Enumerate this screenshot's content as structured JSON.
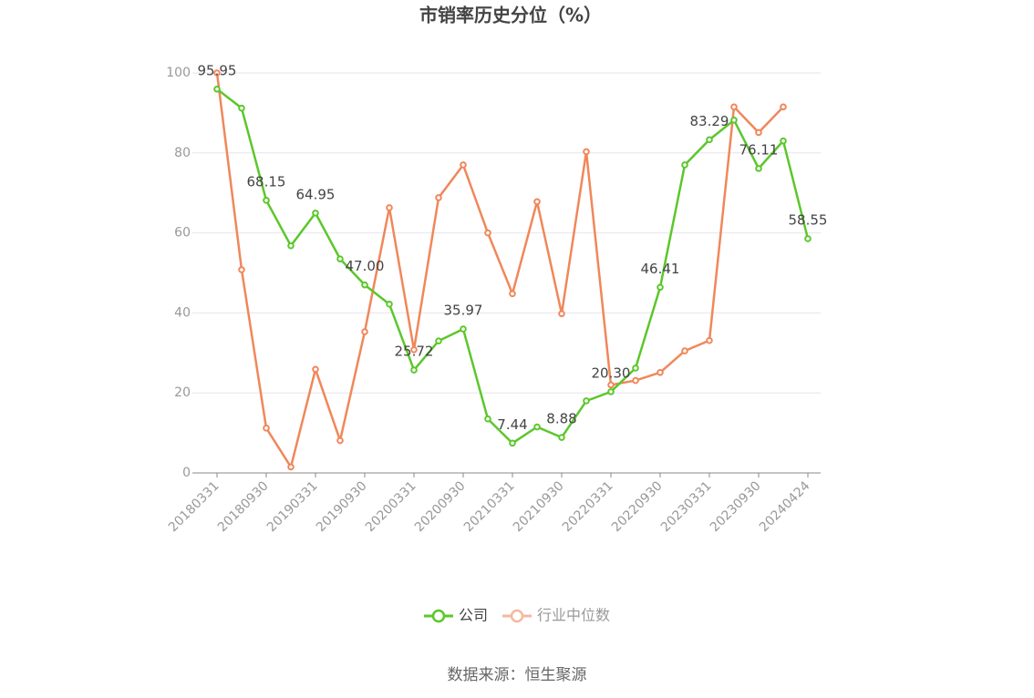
{
  "chart_data": {
    "type": "line",
    "title": "市销率历史分位（%）",
    "source": "数据来源：恒生聚源",
    "categories": [
      "20180331",
      null,
      "20180930",
      null,
      "20190331",
      null,
      "20190930",
      null,
      "20200331",
      null,
      "20200930",
      null,
      "20210331",
      null,
      "20210930",
      null,
      "20220331",
      null,
      "20220930",
      null,
      "20230331",
      null,
      "20230930",
      null,
      "20240424"
    ],
    "series": [
      {
        "name": "公司",
        "color": "#5cc72b",
        "values": [
          95.95,
          91.2,
          68.15,
          56.8,
          64.95,
          53.5,
          47.0,
          42.2,
          25.72,
          33.0,
          35.97,
          13.5,
          7.44,
          11.5,
          8.88,
          18.0,
          20.3,
          26.2,
          46.41,
          77.0,
          83.29,
          88.2,
          76.11,
          83.0,
          58.55
        ],
        "value_labels": [
          "95.95",
          null,
          "68.15",
          null,
          "64.95",
          null,
          "47.00",
          null,
          "25.72",
          null,
          "35.97",
          null,
          "7.44",
          null,
          "8.88",
          null,
          "20.30",
          null,
          "46.41",
          null,
          "83.29",
          null,
          "76.11",
          null,
          "58.55"
        ]
      },
      {
        "name": "行业中位数",
        "color": "#f0875a",
        "values": [
          100,
          50.8,
          11.2,
          1.5,
          25.9,
          8.1,
          35.3,
          66.3,
          30.8,
          68.8,
          77.0,
          60.0,
          44.8,
          67.8,
          39.8,
          80.3,
          22.0,
          23.1,
          25.1,
          30.5,
          33.1,
          91.5,
          85.1,
          91.5,
          null
        ]
      }
    ],
    "ylim": [
      0,
      100
    ],
    "yticks": [
      0,
      20,
      40,
      60,
      80,
      100
    ],
    "grid": true
  }
}
